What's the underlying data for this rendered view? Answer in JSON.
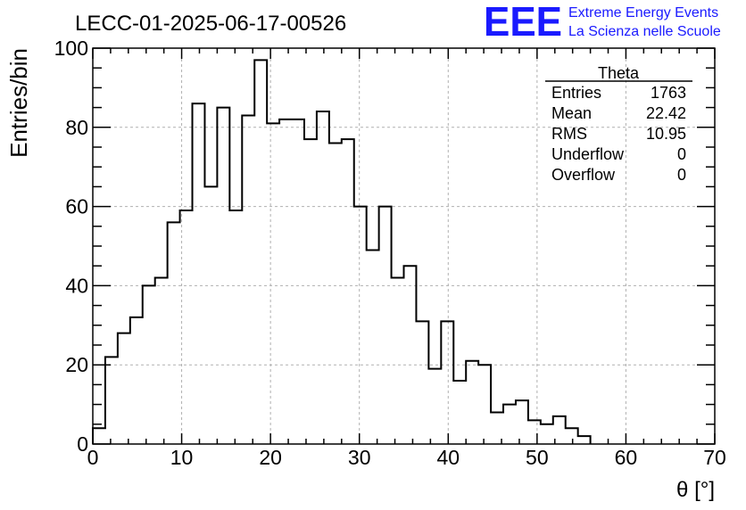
{
  "chart_data": {
    "type": "bar",
    "title": "LECC-01-2025-06-17-00526",
    "xlabel": "θ [°]",
    "ylabel": "Entries/bin",
    "xlim": [
      0,
      70
    ],
    "ylim": [
      0,
      100
    ],
    "bin_width": 1.4,
    "x_ticks": [
      "0",
      "10",
      "20",
      "30",
      "40",
      "50",
      "60",
      "70"
    ],
    "y_ticks": [
      "0",
      "20",
      "40",
      "60",
      "80",
      "100"
    ],
    "grid": true,
    "values": [
      4,
      22,
      28,
      32,
      40,
      42,
      56,
      59,
      86,
      65,
      85,
      59,
      83,
      97,
      81,
      82,
      82,
      77,
      84,
      76,
      77,
      60,
      49,
      60,
      42,
      45,
      31,
      19,
      31,
      16,
      21,
      20,
      8,
      10,
      11,
      6,
      5,
      7,
      4,
      2
    ]
  },
  "stats_box": {
    "title": "Theta",
    "rows": [
      {
        "label": "Entries",
        "value": "1763"
      },
      {
        "label": "Mean",
        "value": "22.42"
      },
      {
        "label": "RMS",
        "value": "10.95"
      },
      {
        "label": "Underflow",
        "value": "0"
      },
      {
        "label": "Overflow",
        "value": "0"
      }
    ]
  },
  "logo": {
    "mark": "EEE",
    "line1": "Extreme Energy Events",
    "line2": "La Scienza nelle Scuole",
    "color": "#1a1aff"
  }
}
